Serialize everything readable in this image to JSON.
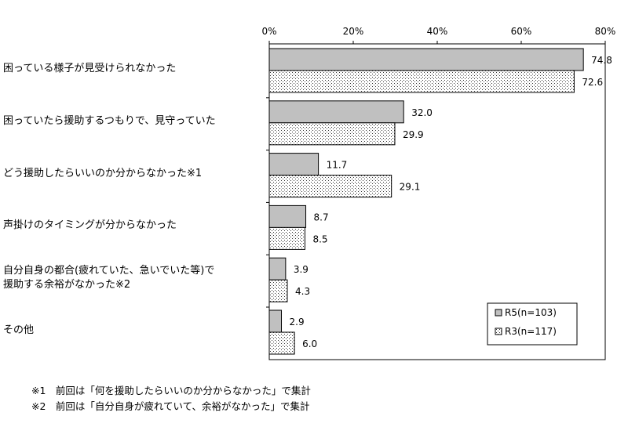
{
  "chart_data": {
    "type": "bar",
    "orientation": "horizontal",
    "categories": [
      "困っている様子が見受けられなかった",
      "困っていたら援助するつもりで、見守っていた",
      "どう援助したらいいのか分からなかった※1",
      "声掛けのタイミングが分からなかった",
      "自分自身の都合(疲れていた、急いでいた等)で\n援助する余裕がなかった※2",
      "その他"
    ],
    "series": [
      {
        "name": "R5(n=103)",
        "values": [
          74.8,
          32.0,
          11.7,
          8.7,
          3.9,
          2.9
        ],
        "fill": "#c0c0c0"
      },
      {
        "name": "R3(n=117)",
        "values": [
          72.6,
          29.9,
          29.1,
          8.5,
          4.3,
          6.0
        ],
        "fill": "dotted"
      }
    ],
    "value_labels": [
      [
        "74.8",
        "32.0",
        "11.7",
        "8.7",
        "3.9",
        "2.9"
      ],
      [
        "72.6",
        "29.9",
        "29.1",
        "8.5",
        "4.3",
        "6.0"
      ]
    ],
    "xticks": [
      "0%",
      "20%",
      "40%",
      "60%",
      "80%"
    ],
    "xlim": [
      0,
      80
    ],
    "legend_position": "bottom-right",
    "grid": false
  },
  "footnotes": [
    "※1　前回は「何を援助したらいいのか分からなかった」で集計",
    "※2　前回は「自分自身が疲れていて、余裕がなかった」で集計"
  ]
}
